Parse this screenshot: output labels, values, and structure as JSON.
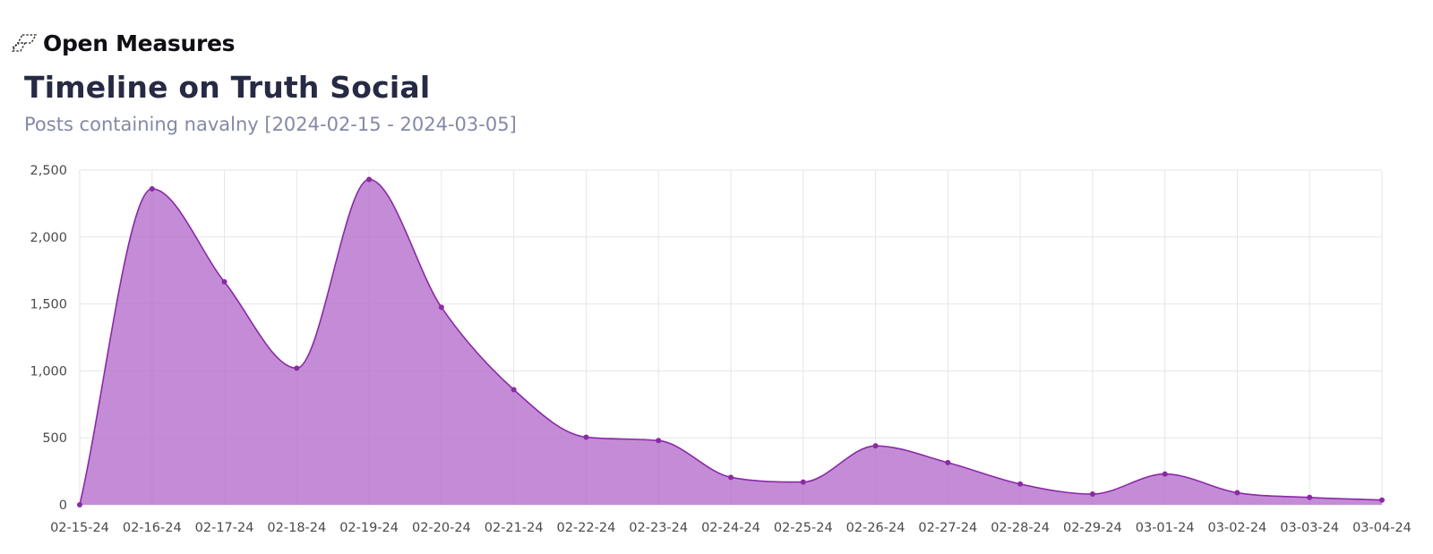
{
  "brand": {
    "name": "Open Measures",
    "icon": "open-measures-logo-icon"
  },
  "header": {
    "title": "Timeline on Truth Social",
    "subtitle": "Posts containing navalny [2024-02-15 - 2024-03-05]"
  },
  "colors": {
    "area_fill": "#b56fcc",
    "line": "#8a2aa6",
    "grid": "#e6e6ea",
    "title": "#272a44",
    "subtitle": "#8489a6"
  },
  "chart_data": {
    "type": "area",
    "title": "Timeline on Truth Social",
    "subtitle": "Posts containing navalny [2024-02-15 - 2024-03-05]",
    "xlabel": "",
    "ylabel": "",
    "x": [
      "02-15-24",
      "02-16-24",
      "02-17-24",
      "02-18-24",
      "02-19-24",
      "02-20-24",
      "02-21-24",
      "02-22-24",
      "02-23-24",
      "02-24-24",
      "02-25-24",
      "02-26-24",
      "02-27-24",
      "02-28-24",
      "02-29-24",
      "03-01-24",
      "03-02-24",
      "03-03-24",
      "03-04-24"
    ],
    "series": [
      {
        "values": [
          0,
          2360,
          1665,
          1020,
          2430,
          1475,
          860,
          505,
          480,
          205,
          170,
          440,
          315,
          155,
          80,
          230,
          90,
          55,
          35
        ]
      }
    ],
    "ylim": [
      0,
      2500
    ],
    "yticks": [
      "0",
      "500",
      "1,000",
      "1,500",
      "2,000",
      "2,500"
    ],
    "grid": true,
    "legend": "none"
  }
}
